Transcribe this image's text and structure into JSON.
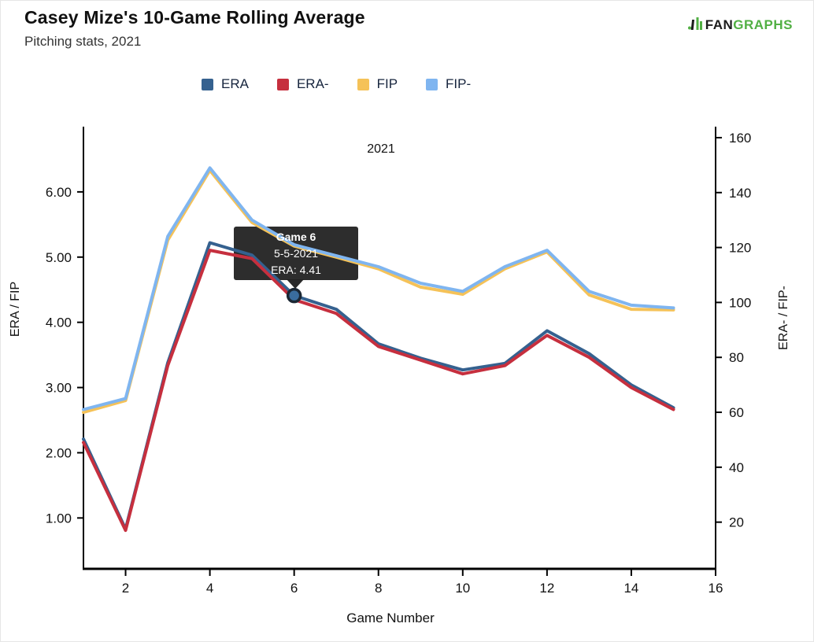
{
  "header": {
    "title": "Casey Mize's 10-Game Rolling Average",
    "subtitle": "Pitching stats, 2021",
    "logo": {
      "fan": "FAN",
      "graphs": "GRAPHS"
    }
  },
  "legend": {
    "items": [
      {
        "label": "ERA",
        "color": "#35618f"
      },
      {
        "label": "ERA-",
        "color": "#c62f3e"
      },
      {
        "label": "FIP",
        "color": "#f5c258"
      },
      {
        "label": "FIP-",
        "color": "#7fb5f0"
      }
    ]
  },
  "tooltip": {
    "line1": "Game 6",
    "line2": "5-5-2021",
    "line3": "ERA: 4.41"
  },
  "chart_data": {
    "type": "line",
    "inner_year_label": "2021",
    "xlabel": "Game Number",
    "ylabel_left": "ERA / FIP",
    "ylabel_right": "ERA- / FIP-",
    "x": [
      1,
      2,
      3,
      4,
      5,
      6,
      7,
      8,
      9,
      10,
      11,
      12,
      13,
      14,
      15
    ],
    "x_ticks": [
      2,
      4,
      6,
      8,
      10,
      12,
      14,
      16
    ],
    "x_range": [
      1,
      16
    ],
    "y_ticks_left": [
      "6.00",
      "5.00",
      "4.00",
      "3.00",
      "2.00",
      "1.00"
    ],
    "y_ticks_right": [
      "160",
      "140",
      "120",
      "100",
      "80",
      "60",
      "40",
      "20"
    ],
    "y_range_left": [
      0.22,
      7.0
    ],
    "y_range_right": [
      3,
      164
    ],
    "grid": false,
    "legend_position": "top",
    "series": [
      {
        "name": "ERA",
        "axis": "left",
        "color": "#35618f",
        "values": [
          2.21,
          0.83,
          3.38,
          5.22,
          5.03,
          4.41,
          4.2,
          3.67,
          3.45,
          3.27,
          3.37,
          3.87,
          3.52,
          3.04,
          2.69
        ]
      },
      {
        "name": "ERA-",
        "axis": "right",
        "color": "#c62f3e",
        "values": [
          49,
          17,
          77,
          119,
          116,
          101,
          96,
          84,
          79,
          74,
          77,
          88,
          80,
          69,
          61
        ]
      },
      {
        "name": "FIP",
        "axis": "left",
        "color": "#f5c258",
        "values": [
          2.62,
          2.8,
          5.26,
          6.33,
          5.53,
          5.17,
          5.0,
          4.82,
          4.54,
          4.43,
          4.82,
          5.08,
          4.42,
          4.2,
          4.19
        ]
      },
      {
        "name": "FIP-",
        "axis": "right",
        "color": "#7fb5f0",
        "values": [
          61,
          65,
          124,
          149,
          130,
          121,
          117,
          113,
          107,
          104,
          113,
          119,
          104,
          99,
          98
        ]
      }
    ],
    "highlighted_point": {
      "series": "ERA",
      "game": 6,
      "value": 4.41
    }
  }
}
